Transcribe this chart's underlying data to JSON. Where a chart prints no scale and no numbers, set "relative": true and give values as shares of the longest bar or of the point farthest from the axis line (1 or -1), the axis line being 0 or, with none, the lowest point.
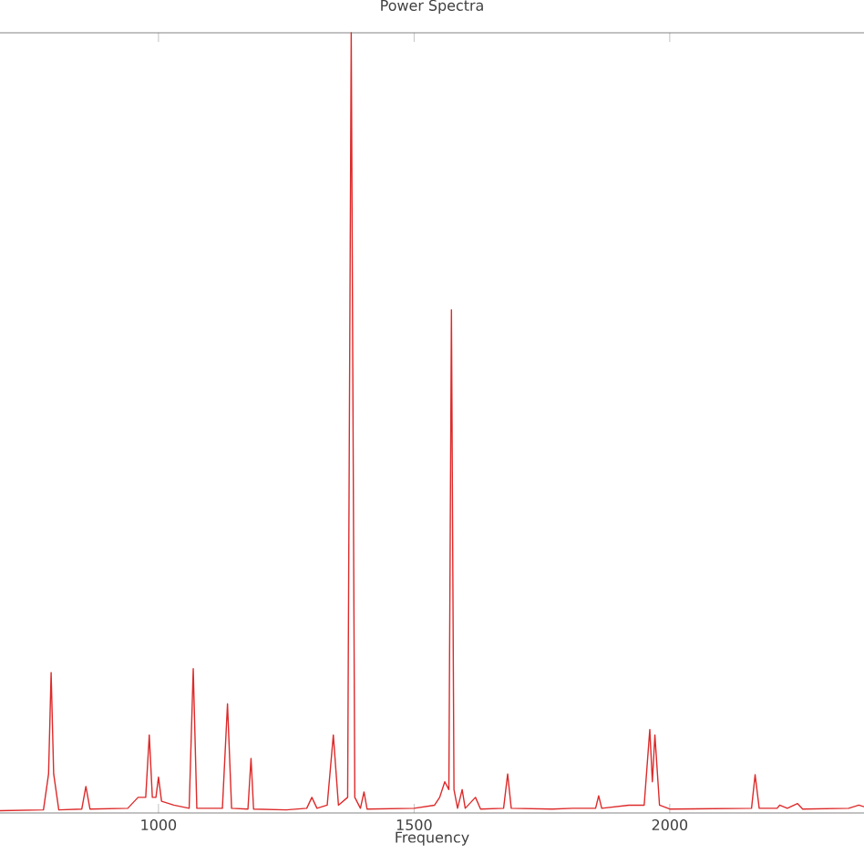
{
  "chart_data": {
    "type": "line",
    "title": "Power Spectra",
    "xlabel": "Frequency",
    "relative": true,
    "xlim": [
      690,
      2380
    ],
    "xticks": [
      1000,
      1500,
      2000
    ],
    "tick_labels": "x",
    "series": [
      {
        "color": "#dd2a2a",
        "x": [
          690,
          775,
          785,
          790,
          795,
          805,
          850,
          858,
          866,
          940,
          960,
          975,
          982,
          988,
          995,
          1000,
          1006,
          1030,
          1060,
          1068,
          1075,
          1125,
          1135,
          1143,
          1175,
          1181,
          1186,
          1250,
          1290,
          1300,
          1310,
          1330,
          1342,
          1352,
          1370,
          1377,
          1384,
          1395,
          1402,
          1408,
          1500,
          1540,
          1550,
          1560,
          1568,
          1573,
          1578,
          1585,
          1594,
          1600,
          1620,
          1630,
          1675,
          1683,
          1690,
          1770,
          1810,
          1855,
          1861,
          1867,
          1920,
          1950,
          1961,
          1966,
          1971,
          1980,
          2000,
          2160,
          2167,
          2175,
          2210,
          2215,
          2230,
          2250,
          2260,
          2350,
          2370,
          2380
        ],
        "values": [
          0.003,
          0.004,
          0.05,
          0.18,
          0.05,
          0.004,
          0.005,
          0.034,
          0.005,
          0.006,
          0.02,
          0.02,
          0.1,
          0.02,
          0.02,
          0.046,
          0.015,
          0.01,
          0.006,
          0.185,
          0.006,
          0.006,
          0.14,
          0.006,
          0.005,
          0.07,
          0.005,
          0.004,
          0.006,
          0.02,
          0.006,
          0.01,
          0.1,
          0.01,
          0.02,
          1.0,
          0.02,
          0.006,
          0.027,
          0.005,
          0.006,
          0.01,
          0.02,
          0.04,
          0.03,
          0.645,
          0.03,
          0.006,
          0.03,
          0.006,
          0.02,
          0.005,
          0.006,
          0.05,
          0.006,
          0.005,
          0.006,
          0.006,
          0.022,
          0.006,
          0.01,
          0.01,
          0.107,
          0.04,
          0.1,
          0.01,
          0.005,
          0.006,
          0.049,
          0.006,
          0.006,
          0.01,
          0.006,
          0.012,
          0.005,
          0.006,
          0.01,
          0.008
        ]
      }
    ]
  }
}
